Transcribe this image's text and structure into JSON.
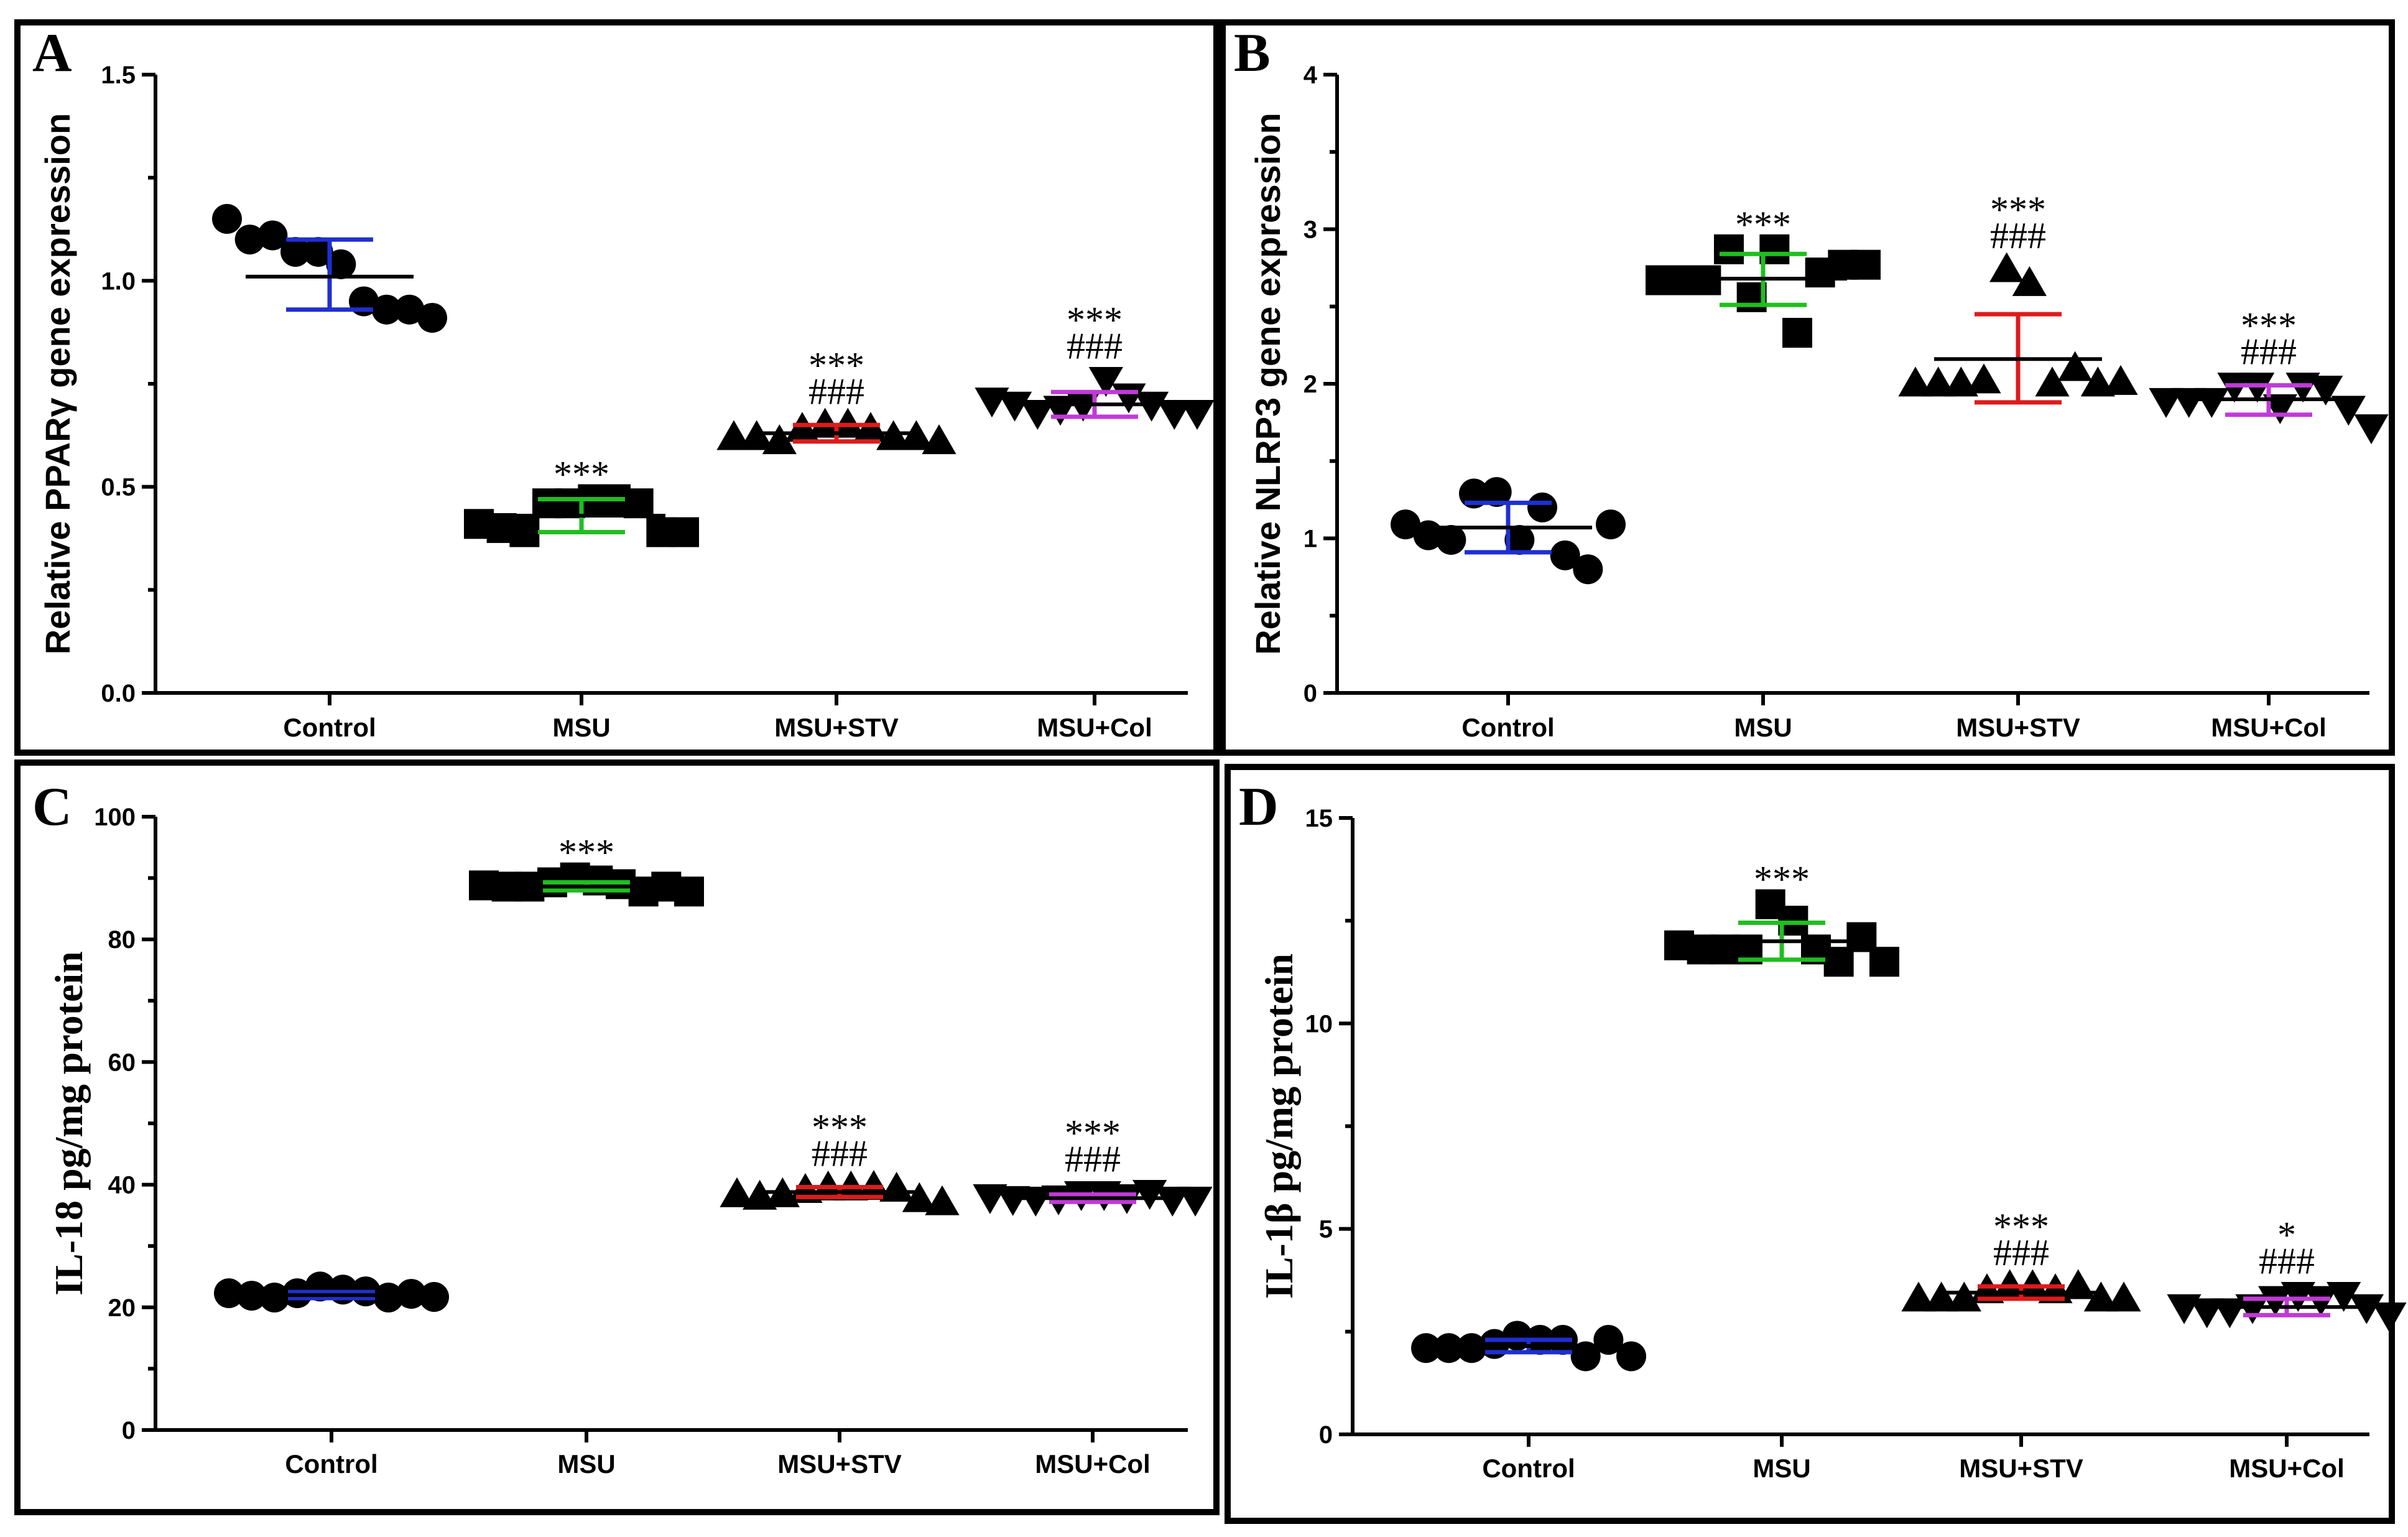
{
  "chart_data": [
    {
      "type": "scatter",
      "panel": "A",
      "title": "",
      "xlabel": "",
      "ylabel": "Relative  PPARγ gene expression",
      "ylim": [
        0,
        1.5
      ],
      "yticks": [
        "0.0",
        "0.5",
        "1.0",
        "1.5"
      ],
      "ytick_values": [
        0,
        0.5,
        1.0,
        1.5
      ],
      "categories": [
        "Control",
        "MSU",
        "MSU+STV",
        "MSU+Col"
      ],
      "groups": [
        {
          "name": "Control",
          "marker": "circle",
          "errColor": "#1f2fd1",
          "mean": 1.01,
          "low": 0.93,
          "high": 1.1,
          "stars": "",
          "hashes": "",
          "points": [
            1.15,
            1.1,
            1.11,
            1.07,
            1.07,
            1.04,
            0.95,
            0.93,
            0.93,
            0.91
          ]
        },
        {
          "name": "MSU",
          "marker": "square",
          "errColor": "#1fbf1f",
          "mean": 0.43,
          "low": 0.39,
          "high": 0.47,
          "stars": "***",
          "hashes": "",
          "points": [
            0.41,
            0.4,
            0.39,
            0.46,
            0.46,
            0.47,
            0.47,
            0.46,
            0.39,
            0.39
          ]
        },
        {
          "name": "MSU+STV",
          "marker": "triangle",
          "errColor": "#e01a1a",
          "mean": 0.63,
          "low": 0.61,
          "high": 0.65,
          "stars": "***",
          "hashes": "###",
          "points": [
            0.62,
            0.62,
            0.61,
            0.64,
            0.65,
            0.65,
            0.64,
            0.62,
            0.62,
            0.61
          ]
        },
        {
          "name": "MSU+Col",
          "marker": "triangle-down",
          "errColor": "#c03ad6",
          "mean": 0.7,
          "low": 0.67,
          "high": 0.73,
          "stars": "***",
          "hashes": "###",
          "points": [
            0.71,
            0.7,
            0.68,
            0.69,
            0.7,
            0.76,
            0.72,
            0.7,
            0.68,
            0.68
          ]
        }
      ]
    },
    {
      "type": "scatter",
      "panel": "B",
      "title": "",
      "xlabel": "",
      "ylabel": "Relative  NLRP3 gene expression",
      "ylim": [
        0,
        4
      ],
      "yticks": [
        "0",
        "1",
        "2",
        "3",
        "4"
      ],
      "ytick_values": [
        0,
        1,
        2,
        3,
        4
      ],
      "categories": [
        "Control",
        "MSU",
        "MSU+STV",
        "MSU+Col"
      ],
      "groups": [
        {
          "name": "Control",
          "marker": "circle",
          "errColor": "#1f2fd1",
          "mean": 1.07,
          "low": 0.91,
          "high": 1.23,
          "stars": "",
          "hashes": "",
          "points": [
            1.09,
            1.02,
            0.99,
            1.29,
            1.3,
            0.99,
            1.2,
            0.89,
            0.8,
            1.09
          ]
        },
        {
          "name": "MSU",
          "marker": "square",
          "errColor": "#1fbf1f",
          "mean": 2.68,
          "low": 2.51,
          "high": 2.84,
          "stars": "***",
          "hashes": "",
          "points": [
            2.67,
            2.67,
            2.67,
            2.87,
            2.56,
            2.87,
            2.33,
            2.72,
            2.77,
            2.77
          ]
        },
        {
          "name": "MSU+STV",
          "marker": "triangle",
          "errColor": "#e01a1a",
          "mean": 2.16,
          "low": 1.88,
          "high": 2.45,
          "stars": "***",
          "hashes": "###",
          "points": [
            2.0,
            2.0,
            2.0,
            2.02,
            2.74,
            2.65,
            2.0,
            2.1,
            2.0,
            2.01
          ]
        },
        {
          "name": "MSU+Col",
          "marker": "triangle-down",
          "errColor": "#c03ad6",
          "mean": 1.9,
          "low": 1.8,
          "high": 1.99,
          "stars": "***",
          "hashes": "###",
          "points": [
            1.89,
            1.89,
            1.89,
            1.99,
            1.99,
            1.85,
            1.99,
            1.97,
            1.84,
            1.72
          ]
        }
      ]
    },
    {
      "type": "scatter",
      "panel": "C",
      "title": "",
      "xlabel": "",
      "ylabel": "IL-18 pg/mg protein",
      "ylim": [
        0,
        100
      ],
      "yticks": [
        "0",
        "20",
        "40",
        "60",
        "80",
        "100"
      ],
      "ytick_values": [
        0,
        20,
        40,
        60,
        80,
        100
      ],
      "categories": [
        "Control",
        "MSU",
        "MSU+STV",
        "MSU+Col"
      ],
      "groups": [
        {
          "name": "Control",
          "marker": "circle",
          "errColor": "#1f2fd1",
          "mean": 22.0,
          "low": 21.5,
          "high": 22.5,
          "stars": "",
          "hashes": "",
          "points": [
            22.3,
            21.9,
            21.6,
            22.3,
            23.4,
            22.9,
            22.6,
            21.6,
            22.2,
            21.7
          ]
        },
        {
          "name": "MSU",
          "marker": "square",
          "errColor": "#1fbf1f",
          "mean": 88.6,
          "low": 88.0,
          "high": 89.3,
          "stars": "***",
          "hashes": "",
          "points": [
            88.8,
            88.6,
            88.6,
            89.3,
            90.1,
            89.6,
            89.0,
            87.8,
            88.6,
            87.8
          ]
        },
        {
          "name": "MSU+STV",
          "marker": "triangle",
          "errColor": "#e01a1a",
          "mean": 38.8,
          "low": 38.0,
          "high": 39.6,
          "stars": "***",
          "hashes": "###",
          "points": [
            38.4,
            38.0,
            38.4,
            39.1,
            39.5,
            39.5,
            39.6,
            39.3,
            37.6,
            37.1
          ]
        },
        {
          "name": "MSU+Col",
          "marker": "triangle-down",
          "errColor": "#c03ad6",
          "mean": 37.8,
          "low": 37.2,
          "high": 38.4,
          "stars": "***",
          "hashes": "###",
          "points": [
            38.0,
            37.7,
            37.6,
            37.8,
            38.5,
            38.5,
            38.0,
            38.7,
            37.6,
            37.6
          ]
        }
      ]
    },
    {
      "type": "scatter",
      "panel": "D",
      "title": "",
      "xlabel": "",
      "ylabel": "IL-1β pg/mg protein",
      "ylim": [
        0,
        15
      ],
      "yticks": [
        "0",
        "5",
        "10",
        "15"
      ],
      "ytick_values": [
        0,
        5,
        10,
        15
      ],
      "categories": [
        "Control",
        "MSU",
        "MSU+STV",
        "MSU+Col"
      ],
      "groups": [
        {
          "name": "Control",
          "marker": "circle",
          "errColor": "#1f2fd1",
          "mean": 2.15,
          "low": 2.0,
          "high": 2.3,
          "stars": "",
          "hashes": "",
          "points": [
            2.1,
            2.1,
            2.1,
            2.2,
            2.4,
            2.3,
            2.3,
            1.9,
            2.3,
            1.9
          ]
        },
        {
          "name": "MSU",
          "marker": "square",
          "errColor": "#1fbf1f",
          "mean": 12.0,
          "low": 11.55,
          "high": 12.45,
          "stars": "***",
          "hashes": "",
          "points": [
            11.9,
            11.8,
            11.8,
            11.8,
            12.9,
            12.5,
            11.8,
            11.5,
            12.1,
            11.5
          ]
        },
        {
          "name": "MSU+STV",
          "marker": "triangle",
          "errColor": "#e01a1a",
          "mean": 3.45,
          "low": 3.3,
          "high": 3.6,
          "stars": "***",
          "hashes": "###",
          "points": [
            3.3,
            3.3,
            3.3,
            3.5,
            3.6,
            3.6,
            3.5,
            3.6,
            3.3,
            3.3
          ]
        },
        {
          "name": "MSU+Col",
          "marker": "triangle-down",
          "errColor": "#c03ad6",
          "mean": 3.1,
          "low": 2.9,
          "high": 3.3,
          "stars": "*",
          "hashes": "###",
          "points": [
            3.1,
            3.0,
            3.0,
            3.1,
            3.3,
            3.4,
            3.3,
            3.4,
            3.1,
            2.9
          ]
        }
      ]
    }
  ]
}
